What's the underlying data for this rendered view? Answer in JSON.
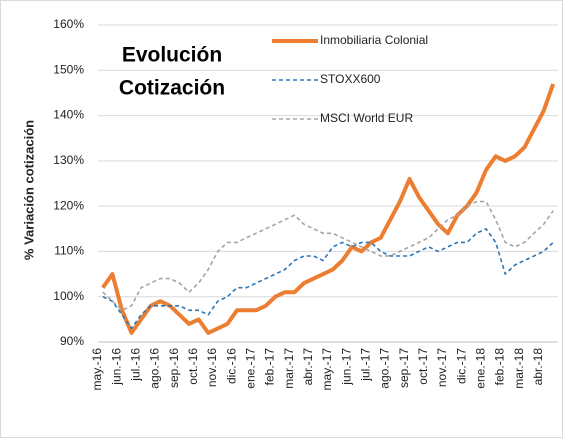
{
  "chart_data": {
    "type": "line",
    "title": [
      "Evolución",
      "Cotización"
    ],
    "ylabel": "% Variación cotización",
    "categories": [
      "may.-16",
      null,
      "jun.-16",
      null,
      "jul.-16",
      null,
      "ago.-16",
      null,
      "sep.-16",
      null,
      "oct.-16",
      null,
      "nov.-16",
      null,
      "dic.-16",
      null,
      "ene.-17",
      null,
      "feb.-17",
      null,
      "mar.-17",
      null,
      "abr.-17",
      null,
      "may.-17",
      null,
      "jun.-17",
      null,
      "jul.-17",
      null,
      "ago.-17",
      null,
      "sep.-17",
      null,
      "oct.-17",
      null,
      "nov.-17",
      null,
      "dic.-17",
      null,
      "ene.-18",
      null,
      "feb.-18",
      null,
      "mar.-18",
      null,
      "abr.-18",
      null
    ],
    "series": [
      {
        "name": "Inmobiliaria Colonial",
        "color": "#ed7d31",
        "width": 4,
        "dash": false,
        "values": [
          102,
          105,
          97,
          92,
          95,
          98,
          99,
          98,
          96,
          94,
          95,
          92,
          93,
          94,
          97,
          97,
          97,
          98,
          100,
          101,
          101,
          103,
          104,
          105,
          106,
          108,
          111,
          110,
          112,
          113,
          117,
          121,
          126,
          122,
          119,
          116,
          114,
          118,
          120,
          123,
          128,
          131,
          130,
          131,
          133,
          137,
          141,
          147
        ]
      },
      {
        "name": "STOXX600",
        "color": "#2e75b6",
        "width": 1.6,
        "dash": true,
        "values": [
          100,
          99,
          96,
          93,
          96,
          98,
          98,
          98,
          98,
          97,
          97,
          96,
          99,
          100,
          102,
          102,
          103,
          104,
          105,
          106,
          108,
          109,
          109,
          108,
          111,
          112,
          111,
          112,
          112,
          110,
          109,
          109,
          109,
          110,
          111,
          110,
          111,
          112,
          112,
          114,
          115,
          112,
          105,
          107,
          108,
          109,
          110,
          112
        ]
      },
      {
        "name": "MSCI World EUR",
        "color": "#a5a5a5",
        "width": 1.6,
        "dash": true,
        "values": [
          101,
          99,
          97,
          98,
          102,
          103,
          104,
          104,
          103,
          101,
          103,
          106,
          110,
          112,
          112,
          113,
          114,
          115,
          116,
          117,
          118,
          116,
          115,
          114,
          114,
          113,
          112,
          111,
          110,
          109,
          109,
          110,
          111,
          112,
          113,
          115,
          117,
          118,
          120,
          121,
          121,
          117,
          112,
          111,
          112,
          114,
          116,
          119
        ]
      }
    ],
    "ylim": [
      90,
      160
    ],
    "yticks": [
      {
        "value": 90,
        "label": "90%"
      },
      {
        "value": 100,
        "label": "100%"
      },
      {
        "value": 110,
        "label": "110%"
      },
      {
        "value": 120,
        "label": "120%"
      },
      {
        "value": 130,
        "label": "130%"
      },
      {
        "value": 140,
        "label": "140%"
      },
      {
        "value": 150,
        "label": "150%"
      },
      {
        "value": 160,
        "label": "160%"
      }
    ],
    "grid": true
  }
}
